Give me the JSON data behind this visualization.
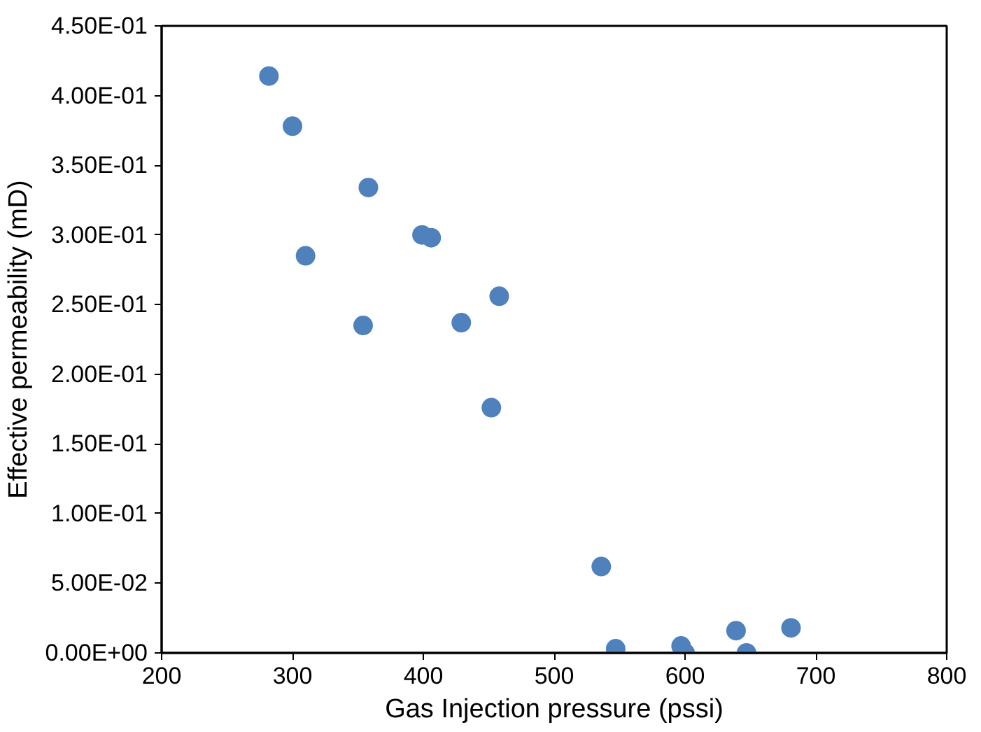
{
  "chart_data": {
    "type": "scatter",
    "xlabel": "Gas Injection pressure (pssi)",
    "ylabel": "Effective permeability (mD)",
    "x": [
      282,
      300,
      358,
      310,
      399,
      406,
      354,
      429,
      458,
      452,
      536,
      547,
      597,
      600,
      639,
      647,
      681
    ],
    "values": [
      0.414,
      0.378,
      0.334,
      0.285,
      0.3,
      0.298,
      0.235,
      0.237,
      0.256,
      0.176,
      0.062,
      0.003,
      0.005,
      0.0,
      0.016,
      0.0,
      0.018
    ],
    "color": "#4f81bd",
    "marker": "circle",
    "grid": false,
    "xlim": [
      200,
      800
    ],
    "xticks": [
      200,
      300,
      400,
      500,
      600,
      700,
      800
    ],
    "ylim": [
      0,
      0.45
    ],
    "yticks": [
      {
        "value": 0,
        "label": "0.00E+00"
      },
      {
        "value": 0.05,
        "label": "5.00E-02"
      },
      {
        "value": 0.1,
        "label": "1.00E-01"
      },
      {
        "value": 0.15,
        "label": "1.50E-01"
      },
      {
        "value": 0.2,
        "label": "2.00E-01"
      },
      {
        "value": 0.25,
        "label": "2.50E-01"
      },
      {
        "value": 0.3,
        "label": "3.00E-01"
      },
      {
        "value": 0.35,
        "label": "3.50E-01"
      },
      {
        "value": 0.4,
        "label": "4.00E-01"
      },
      {
        "value": 0.45,
        "label": "4.50E-01"
      }
    ]
  }
}
